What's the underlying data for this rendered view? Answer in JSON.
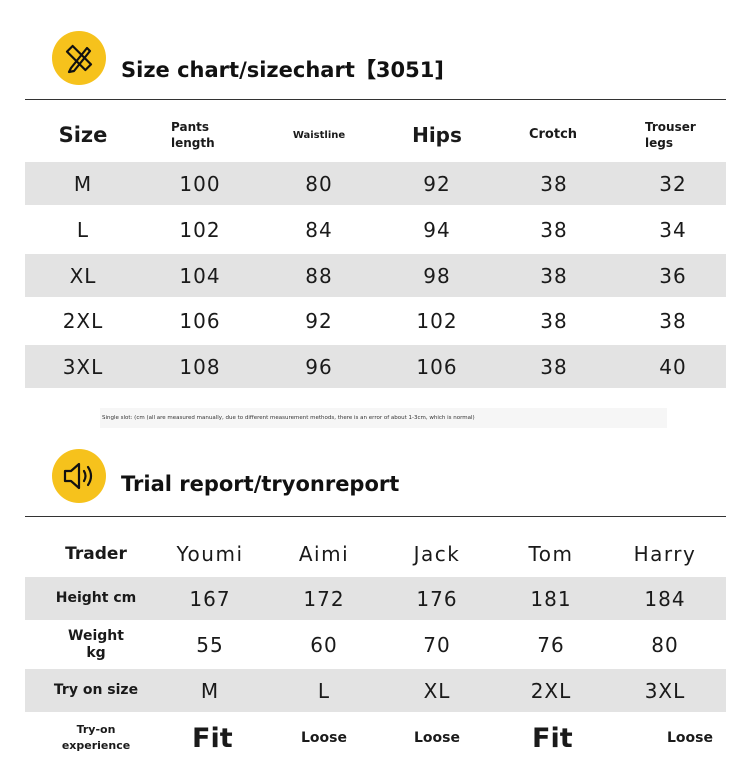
{
  "size_chart": {
    "title": "Size chart/sizechart【3051]",
    "icon": "ruler-pencil-icon",
    "headers": [
      "Size",
      "Pants length",
      "Waistline",
      "Hips",
      "Crotch",
      "Trouser legs"
    ],
    "rows": [
      [
        "M",
        "100",
        "80",
        "92",
        "38",
        "32"
      ],
      [
        "L",
        "102",
        "84",
        "94",
        "38",
        "34"
      ],
      [
        "XL",
        "104",
        "88",
        "98",
        "38",
        "36"
      ],
      [
        "2XL",
        "106",
        "92",
        "102",
        "38",
        "38"
      ],
      [
        "3XL",
        "108",
        "96",
        "106",
        "38",
        "40"
      ]
    ],
    "note": "Single slot: (cm (all are measured manually, due to different measurement methods, there is an error of about 1-3cm, which is normal)"
  },
  "trial_report": {
    "title": "Trial report/tryonreport",
    "icon": "speaker-icon",
    "header_label": "Trader",
    "names": [
      "Youmi",
      "Aimi",
      "Jack",
      "Tom",
      "Harry"
    ],
    "rows": [
      {
        "label": "Height cm",
        "values": [
          "167",
          "172",
          "176",
          "181",
          "184"
        ]
      },
      {
        "label": "Weight kg",
        "values": [
          "55",
          "60",
          "70",
          "76",
          "80"
        ]
      },
      {
        "label": "Try on size",
        "values": [
          "M",
          "L",
          "XL",
          "2XL",
          "3XL"
        ]
      },
      {
        "label": "Try-on experience",
        "values": [
          "Fit",
          "Loose",
          "Loose",
          "Fit",
          "Loose"
        ]
      }
    ]
  },
  "colors": {
    "accent": "#f6c21c",
    "row_gray": "#e3e3e3"
  }
}
